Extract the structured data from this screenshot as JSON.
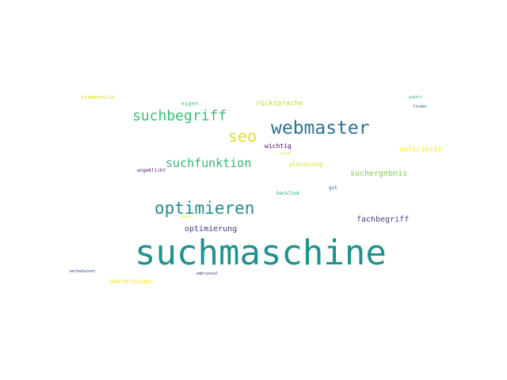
{
  "words": [
    {
      "text": "suchmaschine",
      "color": "#21918c"
    },
    {
      "text": "webmaster",
      "color": "#2c728e"
    },
    {
      "text": "optimieren",
      "color": "#23898e"
    },
    {
      "text": "suchbegriff",
      "color": "#3bbb75"
    },
    {
      "text": "seo",
      "color": "#e1dd37"
    },
    {
      "text": "suchfunktion",
      "color": "#35b779"
    },
    {
      "text": "suchergebnis",
      "color": "#7ad151"
    },
    {
      "text": "fachbegriff",
      "color": "#433e85"
    },
    {
      "text": "optimierung",
      "color": "#46327e"
    },
    {
      "text": "rücksprache",
      "color": "#b5de2b"
    },
    {
      "text": "unterseite",
      "color": "#fde725"
    },
    {
      "text": "stammzeile",
      "color": "#d8e219"
    },
    {
      "text": "eigen",
      "color": "#4ac16d"
    },
    {
      "text": "wichtig",
      "color": "#440154"
    },
    {
      "text": "plazierung",
      "color": "#d0e11c"
    },
    {
      "text": "angeklickt",
      "color": "#481a6c"
    },
    {
      "text": "backlink",
      "color": "#1fa088"
    },
    {
      "text": "gut",
      "color": "#31688e"
    },
    {
      "text": "überbrücken",
      "color": "#f1e51d"
    },
    {
      "text": "embryonal",
      "color": "#472d7b"
    },
    {
      "text": "werbebanner",
      "color": "#3e4a89"
    },
    {
      "text": "finden",
      "color": "#365c8d"
    },
    {
      "text": "gewählt",
      "color": "#1f9e89"
    },
    {
      "text": "passen",
      "color": "#c8e020"
    },
    {
      "text": "bewusst",
      "color": "#e5e419"
    }
  ]
}
